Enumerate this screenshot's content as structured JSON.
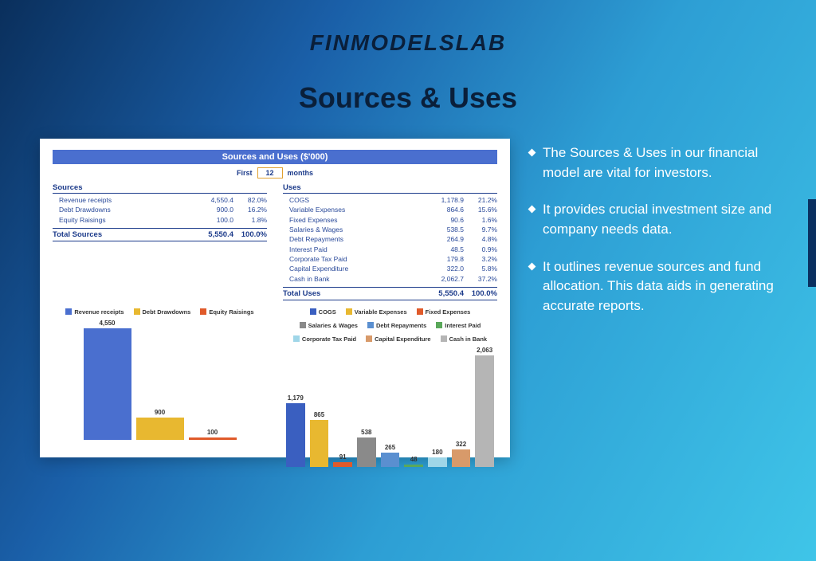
{
  "logo": "FINMODELSLAB",
  "heading": "Sources & Uses",
  "card": {
    "title": "Sources and Uses ($'000)",
    "period": {
      "first": "First",
      "months_val": "12",
      "months_label": "months"
    },
    "sources": {
      "head": "Sources",
      "rows": [
        {
          "label": "Revenue receipts",
          "v1": "4,550.4",
          "v2": "82.0%"
        },
        {
          "label": "Debt Drawdowns",
          "v1": "900.0",
          "v2": "16.2%"
        },
        {
          "label": "Equity Raisings",
          "v1": "100.0",
          "v2": "1.8%"
        }
      ],
      "total": {
        "label": "Total Sources",
        "v1": "5,550.4",
        "v2": "100.0%"
      }
    },
    "uses": {
      "head": "Uses",
      "rows": [
        {
          "label": "COGS",
          "v1": "1,178.9",
          "v2": "21.2%"
        },
        {
          "label": "Variable Expenses",
          "v1": "864.6",
          "v2": "15.6%"
        },
        {
          "label": "Fixed Expenses",
          "v1": "90.6",
          "v2": "1.6%"
        },
        {
          "label": "Salaries & Wages",
          "v1": "538.5",
          "v2": "9.7%"
        },
        {
          "label": "Debt Repayments",
          "v1": "264.9",
          "v2": "4.8%"
        },
        {
          "label": "Interest Paid",
          "v1": "48.5",
          "v2": "0.9%"
        },
        {
          "label": "Corporate Tax Paid",
          "v1": "179.8",
          "v2": "3.2%"
        },
        {
          "label": "Capital Expenditure",
          "v1": "322.0",
          "v2": "5.8%"
        },
        {
          "label": "Cash in Bank",
          "v1": "2,062.7",
          "v2": "37.2%"
        }
      ],
      "total": {
        "label": "Total Uses",
        "v1": "5,550.4",
        "v2": "100.0%"
      }
    }
  },
  "sources_chart": {
    "type": "bar",
    "max": 4550,
    "legend": [
      {
        "label": "Revenue receipts",
        "color": "#4a6fcf"
      },
      {
        "label": "Debt Drawdowns",
        "color": "#e8b830"
      },
      {
        "label": "Equity Raisings",
        "color": "#e05a2a"
      }
    ],
    "bars": [
      {
        "label": "4,550",
        "value": 4550,
        "color": "#4a6fcf"
      },
      {
        "label": "900",
        "value": 900,
        "color": "#e8b830"
      },
      {
        "label": "100",
        "value": 100,
        "color": "#e05a2a"
      }
    ]
  },
  "uses_chart": {
    "type": "bar",
    "max": 2063,
    "legend": [
      {
        "label": "COGS",
        "color": "#3a5fc0"
      },
      {
        "label": "Variable Expenses",
        "color": "#e8b830"
      },
      {
        "label": "Fixed Expenses",
        "color": "#e05a2a"
      },
      {
        "label": "Salaries & Wages",
        "color": "#8a8a8a"
      },
      {
        "label": "Debt Repayments",
        "color": "#5a8fd0"
      },
      {
        "label": "Interest Paid",
        "color": "#5aa85a"
      },
      {
        "label": "Corporate Tax Paid",
        "color": "#9fd6e8"
      },
      {
        "label": "Capital Expenditure",
        "color": "#d89a6a"
      },
      {
        "label": "Cash in Bank",
        "color": "#b5b5b5"
      }
    ],
    "bars": [
      {
        "label": "1,179",
        "value": 1179,
        "color": "#3a5fc0"
      },
      {
        "label": "865",
        "value": 865,
        "color": "#e8b830"
      },
      {
        "label": "91",
        "value": 91,
        "color": "#e05a2a"
      },
      {
        "label": "538",
        "value": 538,
        "color": "#8a8a8a"
      },
      {
        "label": "265",
        "value": 265,
        "color": "#5a8fd0"
      },
      {
        "label": "48",
        "value": 48,
        "color": "#5aa85a"
      },
      {
        "label": "180",
        "value": 180,
        "color": "#9fd6e8"
      },
      {
        "label": "322",
        "value": 322,
        "color": "#d89a6a"
      },
      {
        "label": "2,063",
        "value": 2063,
        "color": "#b5b5b5"
      }
    ]
  },
  "paragraphs": [
    "The Sources & Uses in our financial model are vital for investors.",
    "It provides crucial investment size and company needs data.",
    "It outlines revenue sources and fund allocation. This data aids in generating accurate reports."
  ]
}
